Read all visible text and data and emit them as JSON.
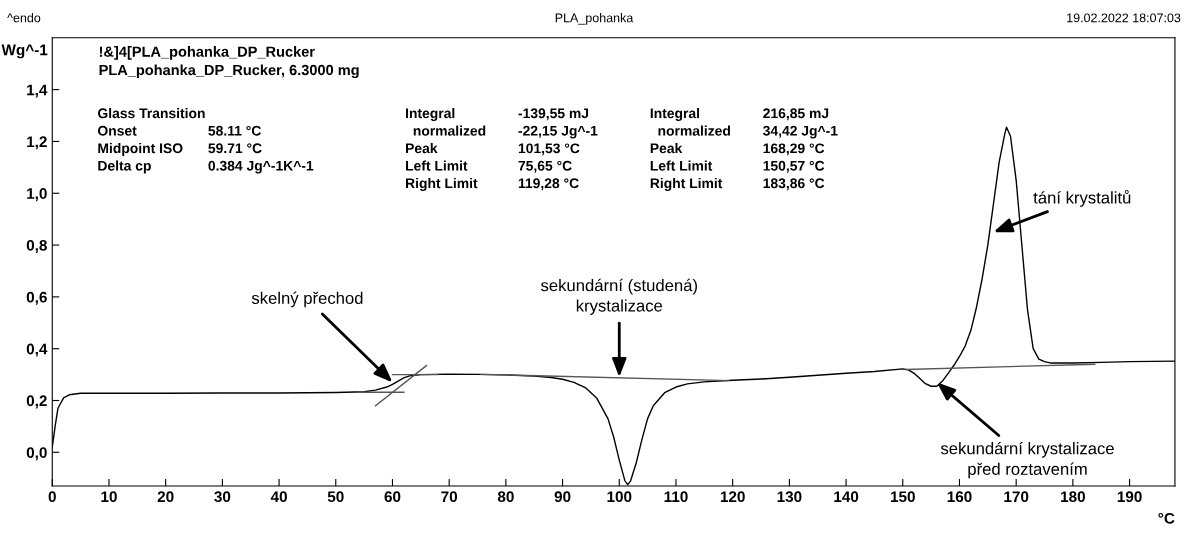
{
  "chart_data": {
    "type": "line",
    "title": "PLA_pohanka",
    "xlabel": "°C",
    "ylabel": "Wg^-1",
    "xlim": [
      0,
      198
    ],
    "ylim": [
      -0.13,
      1.6
    ],
    "xticks": [
      0,
      10,
      20,
      30,
      40,
      50,
      60,
      70,
      80,
      90,
      100,
      110,
      120,
      130,
      140,
      150,
      160,
      170,
      180,
      190
    ],
    "yticks": [
      {
        "value": 0.0,
        "label": "0,0"
      },
      {
        "value": 0.2,
        "label": "0,2"
      },
      {
        "value": 0.4,
        "label": "0,4"
      },
      {
        "value": 0.6,
        "label": "0,6"
      },
      {
        "value": 0.8,
        "label": "0,8"
      },
      {
        "value": 1.0,
        "label": "1,0"
      },
      {
        "value": 1.2,
        "label": "1,2"
      },
      {
        "value": 1.4,
        "label": "1,4"
      }
    ],
    "grid": false,
    "legend": false,
    "marker": "none",
    "line_style": "solid",
    "series": [
      {
        "color": "#000000",
        "x": [
          0,
          0.5,
          1,
          2,
          3,
          5,
          10,
          20,
          30,
          40,
          50,
          55,
          57,
          59,
          60,
          61,
          62,
          63,
          65,
          70,
          75,
          80,
          85,
          88,
          90,
          92,
          94,
          96,
          98,
          99,
          100,
          101,
          101.5,
          102,
          103,
          104,
          105,
          106,
          108,
          110,
          112,
          115,
          120,
          125,
          130,
          140,
          145,
          150,
          151,
          152,
          153,
          154,
          155,
          156,
          157,
          158,
          159,
          160,
          161,
          162,
          163,
          164,
          165,
          166,
          167,
          168,
          168.3,
          169,
          170,
          171,
          172,
          173,
          174,
          175,
          176,
          180,
          185,
          190,
          198
        ],
        "values": [
          0.02,
          0.1,
          0.17,
          0.21,
          0.222,
          0.228,
          0.228,
          0.228,
          0.229,
          0.229,
          0.231,
          0.234,
          0.24,
          0.252,
          0.262,
          0.275,
          0.287,
          0.295,
          0.3,
          0.302,
          0.301,
          0.299,
          0.294,
          0.289,
          0.282,
          0.27,
          0.25,
          0.21,
          0.13,
          0.06,
          -0.03,
          -0.11,
          -0.125,
          -0.11,
          -0.04,
          0.05,
          0.13,
          0.18,
          0.23,
          0.252,
          0.264,
          0.272,
          0.278,
          0.283,
          0.29,
          0.305,
          0.312,
          0.322,
          0.318,
          0.305,
          0.285,
          0.265,
          0.255,
          0.255,
          0.275,
          0.305,
          0.335,
          0.37,
          0.41,
          0.47,
          0.56,
          0.67,
          0.8,
          0.96,
          1.12,
          1.23,
          1.255,
          1.22,
          1.05,
          0.8,
          0.55,
          0.4,
          0.36,
          0.35,
          0.345,
          0.345,
          0.347,
          0.35,
          0.352
        ]
      },
      {
        "color": "#555555",
        "x": [
          75.65,
          119.28
        ],
        "values": [
          0.301,
          0.277
        ]
      },
      {
        "color": "#555555",
        "x": [
          150.57,
          183.86
        ],
        "values": [
          0.32,
          0.34
        ]
      },
      {
        "color": "#555555",
        "x": [
          57,
          66
        ],
        "values": [
          0.18,
          0.335
        ]
      },
      {
        "color": "#555555",
        "x": [
          54,
          62
        ],
        "values": [
          0.232,
          0.232
        ]
      },
      {
        "color": "#555555",
        "x": [
          60,
          68
        ],
        "values": [
          0.3,
          0.3
        ]
      }
    ],
    "annotations": [
      "^endo",
      "19.02.2022 18:07:03",
      "!&]4[PLA_pohanka_DP_Rucker\nPLA_pohanka_DP_Rucker, 6.3000 mg",
      "Glass Transition\nOnset\nMidpoint ISO\nDelta cp",
      "\n58.11 °C\n59.71 °C\n0.384 Jg^-1K^-1",
      "Integral\n  normalized\nPeak\nLeft Limit\nRight Limit",
      "-139,55 mJ\n-22,15 Jg^-1\n101,53 °C\n75,65 °C\n119,28 °C",
      "Integral\n  normalized\nPeak\nLeft Limit\nRight Limit",
      "216,85 mJ\n34,42 Jg^-1\n168,29 °C\n150,57 °C\n183,86 °C",
      {
        "text": "skelný přechod",
        "x": 60,
        "y": 0.27
      },
      {
        "text": "sekundární (studená)\nkrystalizace",
        "x": 100,
        "y": 0.29
      },
      {
        "text": "tání krystalitů",
        "x": 166,
        "y": 0.85
      },
      {
        "text": "sekundární krystalizace\npřed roztavením",
        "x": 156,
        "y": 0.27
      }
    ]
  }
}
